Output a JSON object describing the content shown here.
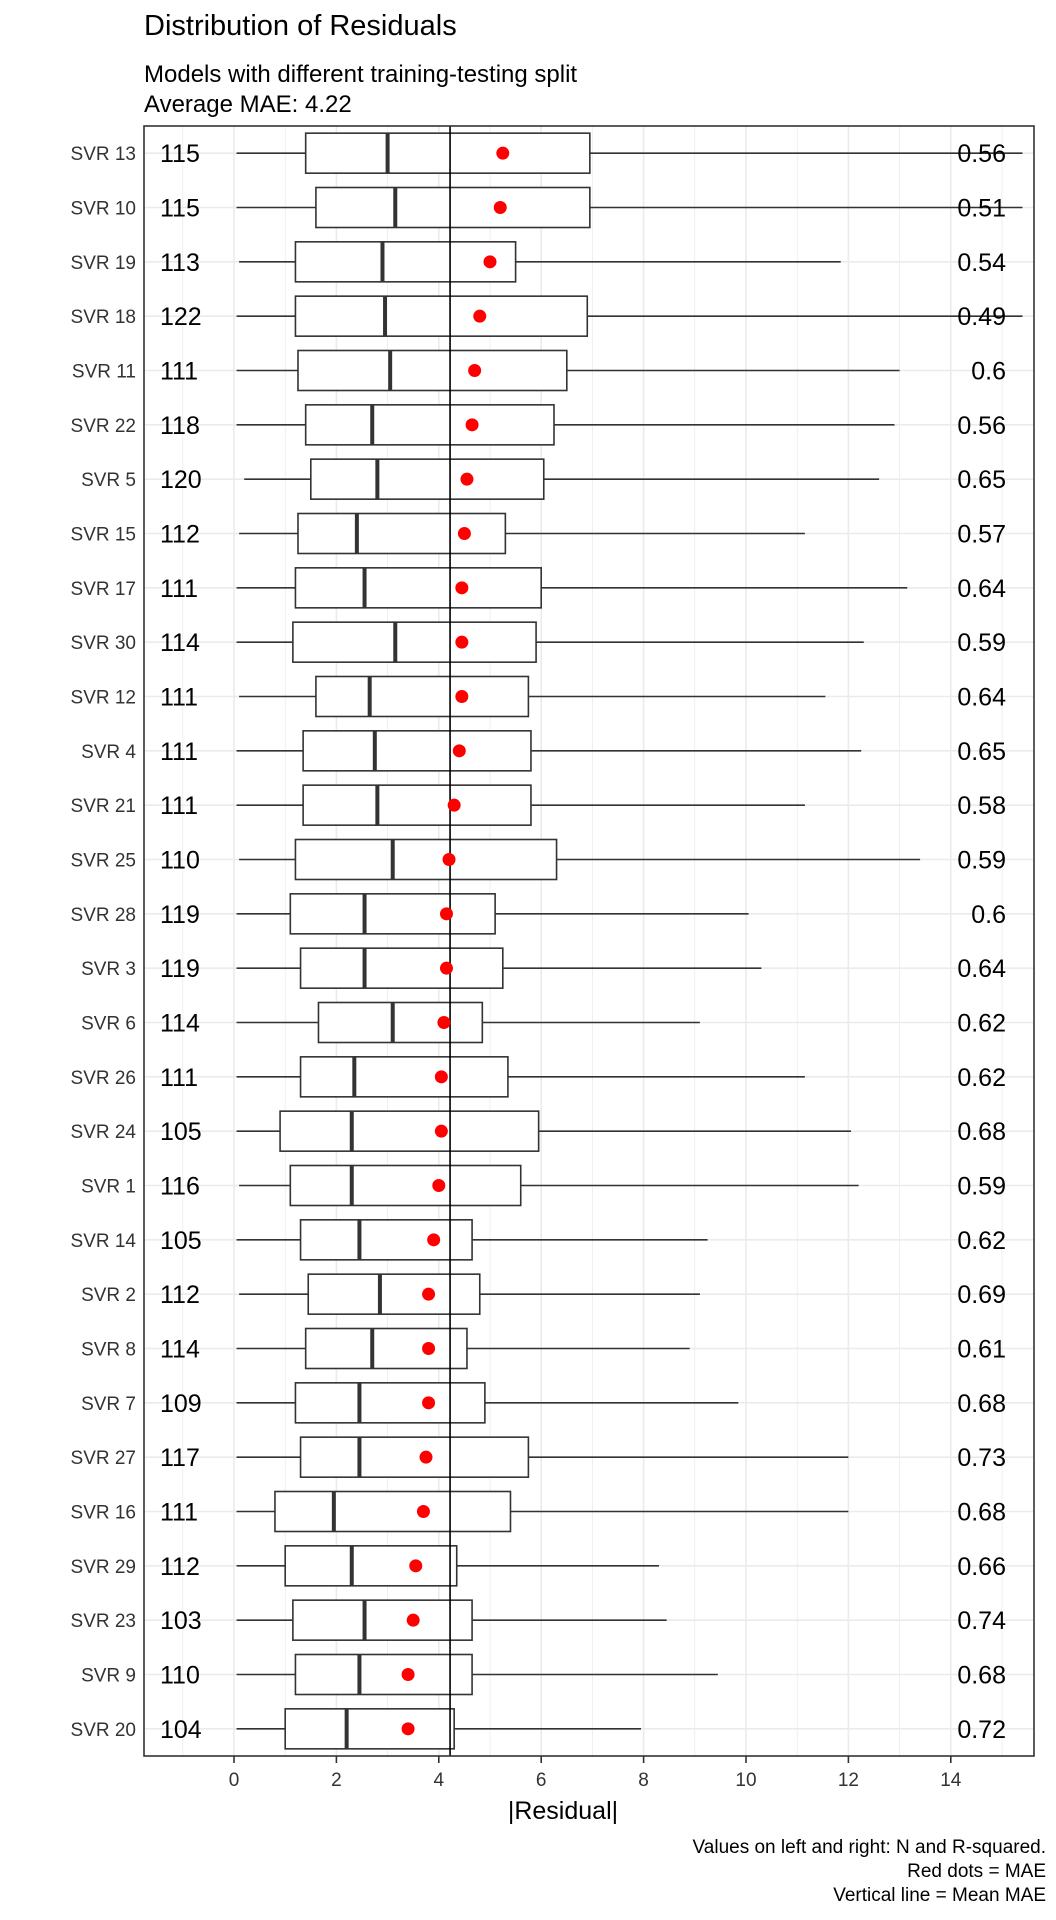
{
  "chart_data": {
    "type": "boxplot",
    "title": "Distribution of Residuals",
    "subtitle_lines": [
      "Models with different training-testing split",
      "Average MAE: 4.22"
    ],
    "xlabel": "|Residual|",
    "xlim": [
      -1.7,
      15.4
    ],
    "x_ticks": [
      0,
      2,
      4,
      6,
      8,
      10,
      12,
      14
    ],
    "mean_mae": 4.22,
    "grid": true,
    "caption_lines": [
      "Values on left and right: N and R-squared.",
      "Red dots = MAE",
      "Vertical line = Mean MAE"
    ],
    "colors": {
      "box": "#333333",
      "mae_dot": "#ff0000",
      "grid": "#ebebeb",
      "mean_line": "#000000"
    },
    "models": [
      {
        "label": "SVR 13",
        "n": "115",
        "r2": "0.56",
        "min": 0.05,
        "q1": 1.4,
        "median": 3.0,
        "q3": 6.95,
        "max": 15.4,
        "mae": 5.25
      },
      {
        "label": "SVR 10",
        "n": "115",
        "r2": "0.51",
        "min": 0.05,
        "q1": 1.6,
        "median": 3.15,
        "q3": 6.95,
        "max": 15.4,
        "mae": 5.2
      },
      {
        "label": "SVR 19",
        "n": "113",
        "r2": "0.54",
        "min": 0.1,
        "q1": 1.2,
        "median": 2.9,
        "q3": 5.5,
        "max": 11.85,
        "mae": 5.0
      },
      {
        "label": "SVR 18",
        "n": "122",
        "r2": "0.49",
        "min": 0.05,
        "q1": 1.2,
        "median": 2.95,
        "q3": 6.9,
        "max": 15.4,
        "mae": 4.8
      },
      {
        "label": "SVR 11",
        "n": "111",
        "r2": "0.6",
        "min": 0.05,
        "q1": 1.25,
        "median": 3.05,
        "q3": 6.5,
        "max": 13.0,
        "mae": 4.7
      },
      {
        "label": "SVR 22",
        "n": "118",
        "r2": "0.56",
        "min": 0.05,
        "q1": 1.4,
        "median": 2.7,
        "q3": 6.25,
        "max": 12.9,
        "mae": 4.65
      },
      {
        "label": "SVR 5",
        "n": "120",
        "r2": "0.65",
        "min": 0.2,
        "q1": 1.5,
        "median": 2.8,
        "q3": 6.05,
        "max": 12.6,
        "mae": 4.55
      },
      {
        "label": "SVR 15",
        "n": "112",
        "r2": "0.57",
        "min": 0.1,
        "q1": 1.25,
        "median": 2.4,
        "q3": 5.3,
        "max": 11.15,
        "mae": 4.5
      },
      {
        "label": "SVR 17",
        "n": "111",
        "r2": "0.64",
        "min": 0.05,
        "q1": 1.2,
        "median": 2.55,
        "q3": 6.0,
        "max": 13.15,
        "mae": 4.45
      },
      {
        "label": "SVR 30",
        "n": "114",
        "r2": "0.59",
        "min": 0.05,
        "q1": 1.15,
        "median": 3.15,
        "q3": 5.9,
        "max": 12.3,
        "mae": 4.45
      },
      {
        "label": "SVR 12",
        "n": "111",
        "r2": "0.64",
        "min": 0.1,
        "q1": 1.6,
        "median": 2.65,
        "q3": 5.75,
        "max": 11.55,
        "mae": 4.45
      },
      {
        "label": "SVR 4",
        "n": "111",
        "r2": "0.65",
        "min": 0.05,
        "q1": 1.35,
        "median": 2.75,
        "q3": 5.8,
        "max": 12.25,
        "mae": 4.4
      },
      {
        "label": "SVR 21",
        "n": "111",
        "r2": "0.58",
        "min": 0.05,
        "q1": 1.35,
        "median": 2.8,
        "q3": 5.8,
        "max": 11.15,
        "mae": 4.3
      },
      {
        "label": "SVR 25",
        "n": "110",
        "r2": "0.59",
        "min": 0.1,
        "q1": 1.2,
        "median": 3.1,
        "q3": 6.3,
        "max": 13.4,
        "mae": 4.2
      },
      {
        "label": "SVR 28",
        "n": "119",
        "r2": "0.6",
        "min": 0.05,
        "q1": 1.1,
        "median": 2.55,
        "q3": 5.1,
        "max": 10.05,
        "mae": 4.15
      },
      {
        "label": "SVR 3",
        "n": "119",
        "r2": "0.64",
        "min": 0.05,
        "q1": 1.3,
        "median": 2.55,
        "q3": 5.25,
        "max": 10.3,
        "mae": 4.15
      },
      {
        "label": "SVR 6",
        "n": "114",
        "r2": "0.62",
        "min": 0.05,
        "q1": 1.65,
        "median": 3.1,
        "q3": 4.85,
        "max": 9.1,
        "mae": 4.1
      },
      {
        "label": "SVR 26",
        "n": "111",
        "r2": "0.62",
        "min": 0.05,
        "q1": 1.3,
        "median": 2.35,
        "q3": 5.35,
        "max": 11.15,
        "mae": 4.05
      },
      {
        "label": "SVR 24",
        "n": "105",
        "r2": "0.68",
        "min": 0.05,
        "q1": 0.9,
        "median": 2.3,
        "q3": 5.95,
        "max": 12.05,
        "mae": 4.05
      },
      {
        "label": "SVR 1",
        "n": "116",
        "r2": "0.59",
        "min": 0.1,
        "q1": 1.1,
        "median": 2.3,
        "q3": 5.6,
        "max": 12.2,
        "mae": 4.0
      },
      {
        "label": "SVR 14",
        "n": "105",
        "r2": "0.62",
        "min": 0.05,
        "q1": 1.3,
        "median": 2.45,
        "q3": 4.65,
        "max": 9.25,
        "mae": 3.9
      },
      {
        "label": "SVR 2",
        "n": "112",
        "r2": "0.69",
        "min": 0.1,
        "q1": 1.45,
        "median": 2.85,
        "q3": 4.8,
        "max": 9.1,
        "mae": 3.8
      },
      {
        "label": "SVR 8",
        "n": "114",
        "r2": "0.61",
        "min": 0.05,
        "q1": 1.4,
        "median": 2.7,
        "q3": 4.55,
        "max": 8.9,
        "mae": 3.8
      },
      {
        "label": "SVR 7",
        "n": "109",
        "r2": "0.68",
        "min": 0.05,
        "q1": 1.2,
        "median": 2.45,
        "q3": 4.9,
        "max": 9.85,
        "mae": 3.8
      },
      {
        "label": "SVR 27",
        "n": "117",
        "r2": "0.73",
        "min": 0.05,
        "q1": 1.3,
        "median": 2.45,
        "q3": 5.75,
        "max": 12.0,
        "mae": 3.75
      },
      {
        "label": "SVR 16",
        "n": "111",
        "r2": "0.68",
        "min": 0.05,
        "q1": 0.8,
        "median": 1.95,
        "q3": 5.4,
        "max": 12.0,
        "mae": 3.7
      },
      {
        "label": "SVR 29",
        "n": "112",
        "r2": "0.66",
        "min": 0.05,
        "q1": 1.0,
        "median": 2.3,
        "q3": 4.35,
        "max": 8.3,
        "mae": 3.55
      },
      {
        "label": "SVR 23",
        "n": "103",
        "r2": "0.74",
        "min": 0.05,
        "q1": 1.15,
        "median": 2.55,
        "q3": 4.65,
        "max": 8.45,
        "mae": 3.5
      },
      {
        "label": "SVR 9",
        "n": "110",
        "r2": "0.68",
        "min": 0.05,
        "q1": 1.2,
        "median": 2.45,
        "q3": 4.65,
        "max": 9.45,
        "mae": 3.4
      },
      {
        "label": "SVR 20",
        "n": "104",
        "r2": "0.72",
        "min": 0.05,
        "q1": 1.0,
        "median": 2.2,
        "q3": 4.3,
        "max": 7.95,
        "mae": 3.4
      }
    ]
  }
}
